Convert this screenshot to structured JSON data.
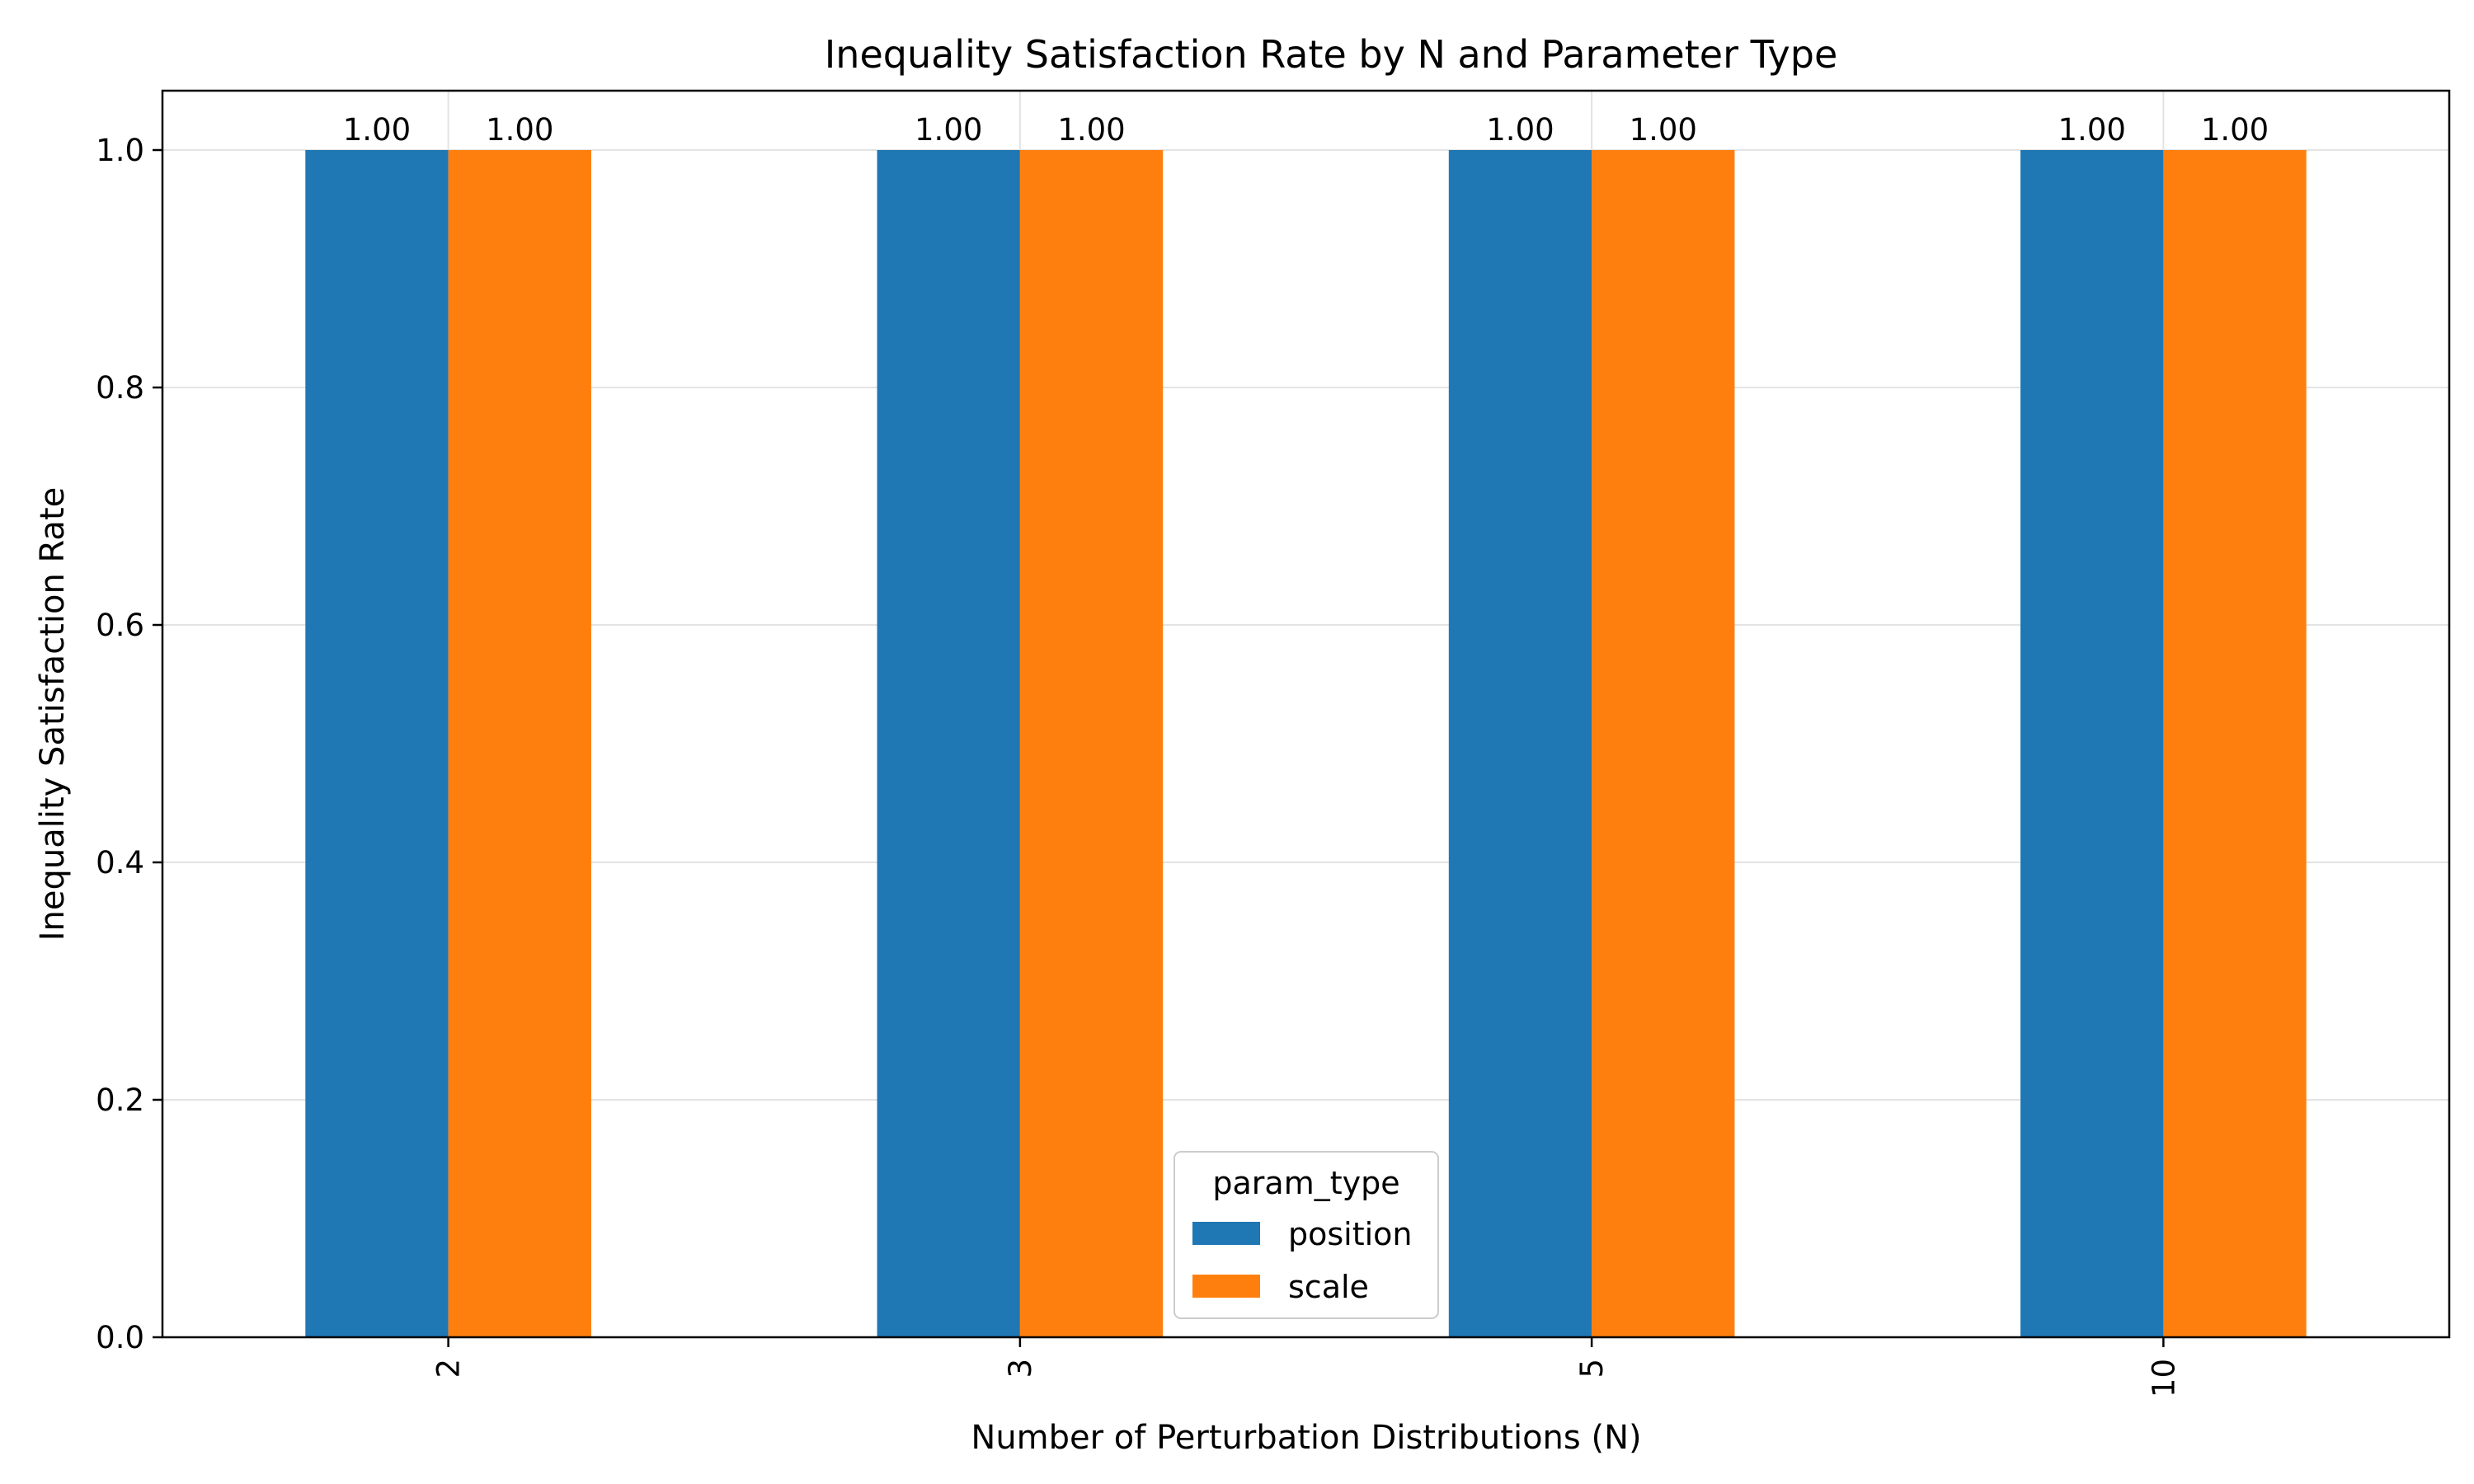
{
  "chart_data": {
    "type": "bar",
    "title": "Inequality Satisfaction Rate by N and Parameter Type",
    "xlabel": "Number of Perturbation Distributions (N)",
    "ylabel": "Inequality Satisfaction Rate",
    "categories": [
      "2",
      "3",
      "5",
      "10"
    ],
    "series": [
      {
        "name": "position",
        "color": "#1f77b4",
        "values": [
          1.0,
          1.0,
          1.0,
          1.0
        ],
        "labels": [
          "1.00",
          "1.00",
          "1.00",
          "1.00"
        ]
      },
      {
        "name": "scale",
        "color": "#ff7f0e",
        "values": [
          1.0,
          1.0,
          1.0,
          1.0
        ],
        "labels": [
          "1.00",
          "1.00",
          "1.00",
          "1.00"
        ]
      }
    ],
    "ylim": [
      0,
      1.05
    ],
    "yticks": [
      "0.0",
      "0.2",
      "0.4",
      "0.6",
      "0.8",
      "1.0"
    ],
    "grid": true,
    "legend": {
      "title": "param_type",
      "placement": "bottom-center"
    }
  }
}
